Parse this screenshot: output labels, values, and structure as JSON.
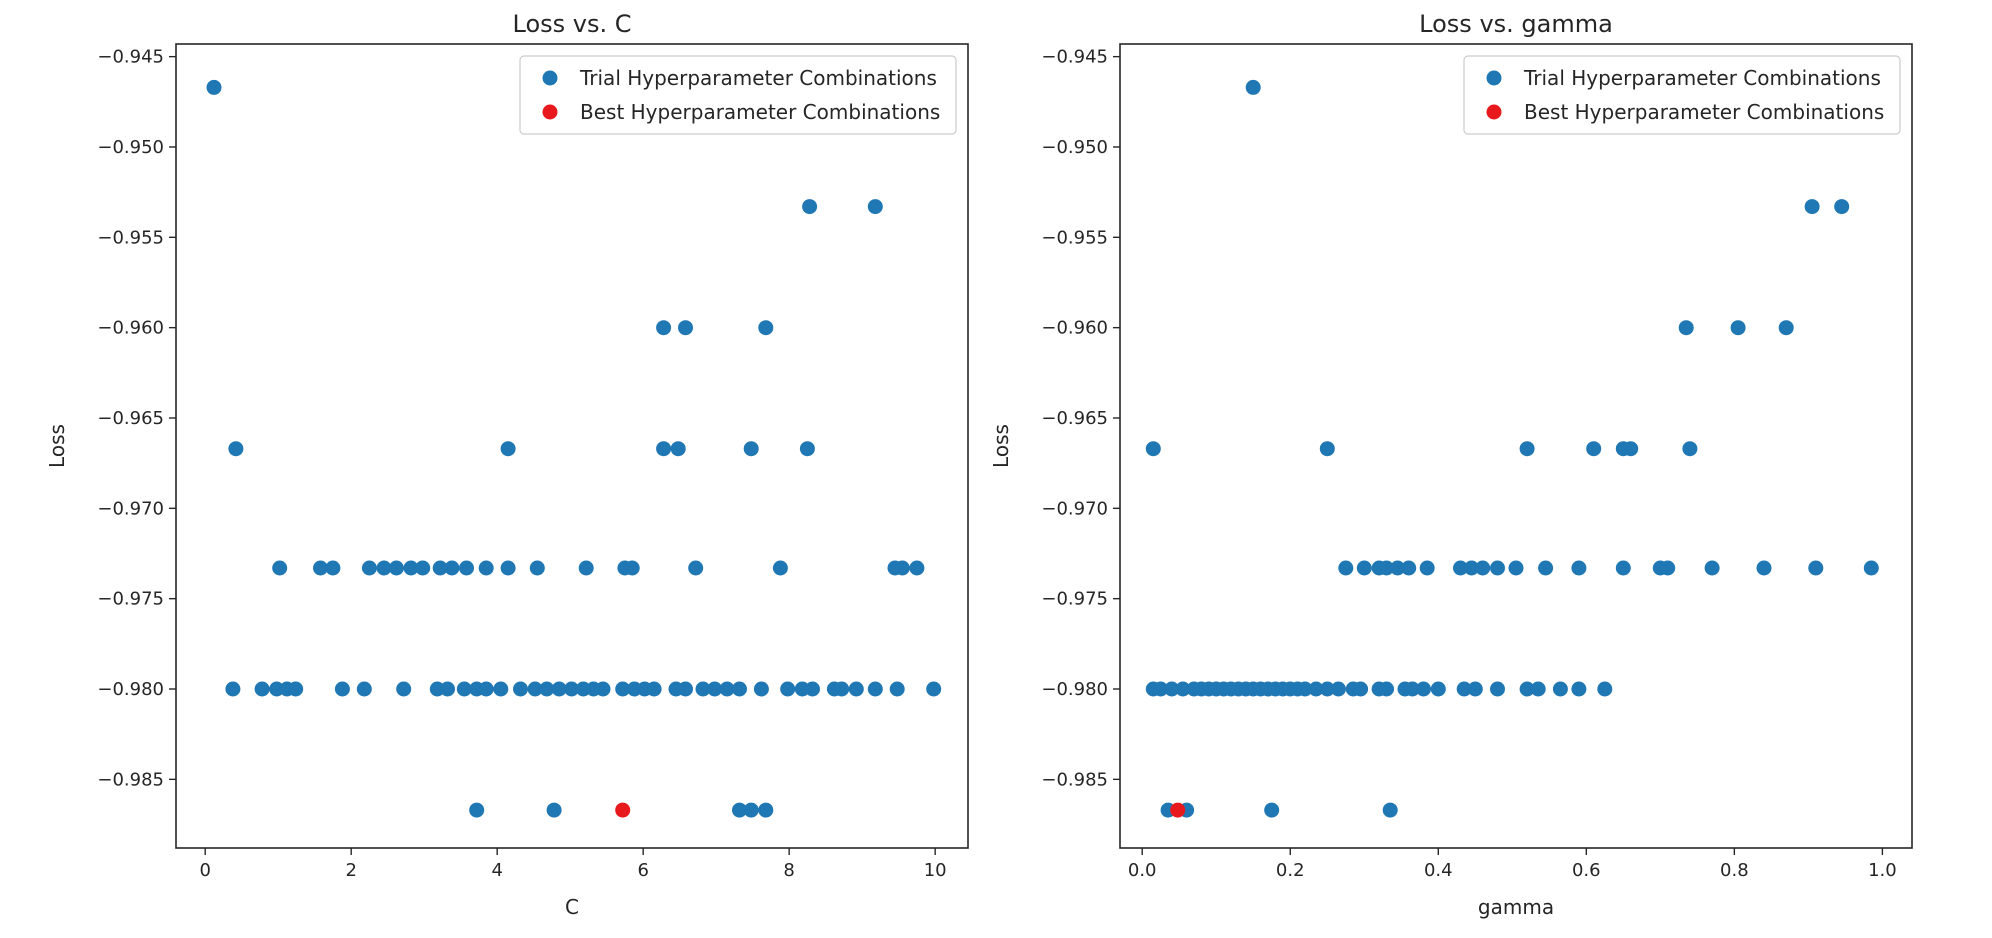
{
  "colors": {
    "trial": "#1f77b4",
    "best": "#e8191c",
    "axis": "#262626",
    "legend_border": "#cccccc"
  },
  "chart_data": [
    {
      "type": "scatter",
      "title": "Loss vs. C",
      "xlabel": "C",
      "ylabel": "Loss",
      "xlim": [
        -0.4,
        10.45
      ],
      "ylim": [
        -0.9888,
        -0.9443
      ],
      "xticks": [
        0,
        2,
        4,
        6,
        8,
        10
      ],
      "xtick_labels": [
        "0",
        "2",
        "4",
        "6",
        "8",
        "10"
      ],
      "yticks": [
        -0.945,
        -0.95,
        -0.955,
        -0.96,
        -0.965,
        -0.97,
        -0.975,
        -0.98,
        -0.985
      ],
      "ytick_labels": [
        "−0.945",
        "−0.950",
        "−0.955",
        "−0.960",
        "−0.965",
        "−0.970",
        "−0.975",
        "−0.980",
        "−0.985"
      ],
      "grid": false,
      "legend_position": "top-right",
      "series": [
        {
          "name": "Trial Hyperparameter Combinations",
          "color_key": "trial",
          "points": [
            [
              0.12,
              -0.9467
            ],
            [
              0.42,
              -0.9667
            ],
            [
              0.38,
              -0.98
            ],
            [
              0.78,
              -0.98
            ],
            [
              0.98,
              -0.98
            ],
            [
              1.12,
              -0.98
            ],
            [
              1.24,
              -0.98
            ],
            [
              1.88,
              -0.98
            ],
            [
              2.18,
              -0.98
            ],
            [
              2.72,
              -0.98
            ],
            [
              3.18,
              -0.98
            ],
            [
              3.32,
              -0.98
            ],
            [
              3.55,
              -0.98
            ],
            [
              3.72,
              -0.98
            ],
            [
              3.85,
              -0.98
            ],
            [
              4.05,
              -0.98
            ],
            [
              4.32,
              -0.98
            ],
            [
              4.52,
              -0.98
            ],
            [
              4.68,
              -0.98
            ],
            [
              4.85,
              -0.98
            ],
            [
              5.02,
              -0.98
            ],
            [
              5.18,
              -0.98
            ],
            [
              5.32,
              -0.98
            ],
            [
              5.45,
              -0.98
            ],
            [
              5.72,
              -0.98
            ],
            [
              5.88,
              -0.98
            ],
            [
              6.02,
              -0.98
            ],
            [
              6.15,
              -0.98
            ],
            [
              6.45,
              -0.98
            ],
            [
              6.58,
              -0.98
            ],
            [
              6.82,
              -0.98
            ],
            [
              6.98,
              -0.98
            ],
            [
              7.15,
              -0.98
            ],
            [
              7.32,
              -0.98
            ],
            [
              7.62,
              -0.98
            ],
            [
              7.98,
              -0.98
            ],
            [
              8.18,
              -0.98
            ],
            [
              8.32,
              -0.98
            ],
            [
              8.62,
              -0.98
            ],
            [
              8.72,
              -0.98
            ],
            [
              8.92,
              -0.98
            ],
            [
              9.18,
              -0.98
            ],
            [
              9.48,
              -0.98
            ],
            [
              9.98,
              -0.98
            ],
            [
              1.02,
              -0.9733
            ],
            [
              1.58,
              -0.9733
            ],
            [
              1.75,
              -0.9733
            ],
            [
              2.25,
              -0.9733
            ],
            [
              2.45,
              -0.9733
            ],
            [
              2.62,
              -0.9733
            ],
            [
              2.82,
              -0.9733
            ],
            [
              2.98,
              -0.9733
            ],
            [
              3.22,
              -0.9733
            ],
            [
              3.38,
              -0.9733
            ],
            [
              3.58,
              -0.9733
            ],
            [
              3.85,
              -0.9733
            ],
            [
              4.15,
              -0.9733
            ],
            [
              4.55,
              -0.9733
            ],
            [
              5.22,
              -0.9733
            ],
            [
              5.75,
              -0.9733
            ],
            [
              5.85,
              -0.9733
            ],
            [
              6.72,
              -0.9733
            ],
            [
              7.88,
              -0.9733
            ],
            [
              9.45,
              -0.9733
            ],
            [
              9.55,
              -0.9733
            ],
            [
              9.75,
              -0.9733
            ],
            [
              4.15,
              -0.9667
            ],
            [
              6.28,
              -0.9667
            ],
            [
              6.48,
              -0.9667
            ],
            [
              7.48,
              -0.9667
            ],
            [
              8.25,
              -0.9667
            ],
            [
              6.28,
              -0.96
            ],
            [
              6.58,
              -0.96
            ],
            [
              7.68,
              -0.96
            ],
            [
              8.28,
              -0.9533
            ],
            [
              9.18,
              -0.9533
            ],
            [
              3.72,
              -0.9867
            ],
            [
              4.78,
              -0.9867
            ],
            [
              7.32,
              -0.9867
            ],
            [
              7.48,
              -0.9867
            ],
            [
              7.68,
              -0.9867
            ]
          ]
        },
        {
          "name": "Best Hyperparameter Combinations",
          "color_key": "best",
          "points": [
            [
              5.72,
              -0.9867
            ]
          ]
        }
      ]
    },
    {
      "type": "scatter",
      "title": "Loss vs. gamma",
      "xlabel": "gamma",
      "ylabel": "Loss",
      "xlim": [
        -0.03,
        1.04
      ],
      "ylim": [
        -0.9888,
        -0.9443
      ],
      "xticks": [
        0,
        0.2,
        0.4,
        0.6,
        0.8,
        1.0
      ],
      "xtick_labels": [
        "0.0",
        "0.2",
        "0.4",
        "0.6",
        "0.8",
        "1.0"
      ],
      "yticks": [
        -0.945,
        -0.95,
        -0.955,
        -0.96,
        -0.965,
        -0.97,
        -0.975,
        -0.98,
        -0.985
      ],
      "ytick_labels": [
        "−0.945",
        "−0.950",
        "−0.955",
        "−0.960",
        "−0.965",
        "−0.970",
        "−0.975",
        "−0.980",
        "−0.985"
      ],
      "grid": false,
      "legend_position": "top-right",
      "series": [
        {
          "name": "Trial Hyperparameter Combinations",
          "color_key": "trial",
          "points": [
            [
              0.15,
              -0.9467
            ],
            [
              0.015,
              -0.9667
            ],
            [
              0.25,
              -0.9667
            ],
            [
              0.52,
              -0.9667
            ],
            [
              0.61,
              -0.9667
            ],
            [
              0.65,
              -0.9667
            ],
            [
              0.66,
              -0.9667
            ],
            [
              0.74,
              -0.9667
            ],
            [
              0.735,
              -0.96
            ],
            [
              0.805,
              -0.96
            ],
            [
              0.87,
              -0.96
            ],
            [
              0.905,
              -0.9533
            ],
            [
              0.945,
              -0.9533
            ],
            [
              0.275,
              -0.9733
            ],
            [
              0.3,
              -0.9733
            ],
            [
              0.32,
              -0.9733
            ],
            [
              0.33,
              -0.9733
            ],
            [
              0.345,
              -0.9733
            ],
            [
              0.36,
              -0.9733
            ],
            [
              0.385,
              -0.9733
            ],
            [
              0.43,
              -0.9733
            ],
            [
              0.445,
              -0.9733
            ],
            [
              0.46,
              -0.9733
            ],
            [
              0.48,
              -0.9733
            ],
            [
              0.505,
              -0.9733
            ],
            [
              0.545,
              -0.9733
            ],
            [
              0.59,
              -0.9733
            ],
            [
              0.65,
              -0.9733
            ],
            [
              0.7,
              -0.9733
            ],
            [
              0.71,
              -0.9733
            ],
            [
              0.77,
              -0.9733
            ],
            [
              0.84,
              -0.9733
            ],
            [
              0.91,
              -0.9733
            ],
            [
              0.985,
              -0.9733
            ],
            [
              0.015,
              -0.98
            ],
            [
              0.025,
              -0.98
            ],
            [
              0.04,
              -0.98
            ],
            [
              0.055,
              -0.98
            ],
            [
              0.07,
              -0.98
            ],
            [
              0.08,
              -0.98
            ],
            [
              0.09,
              -0.98
            ],
            [
              0.1,
              -0.98
            ],
            [
              0.11,
              -0.98
            ],
            [
              0.12,
              -0.98
            ],
            [
              0.13,
              -0.98
            ],
            [
              0.14,
              -0.98
            ],
            [
              0.15,
              -0.98
            ],
            [
              0.16,
              -0.98
            ],
            [
              0.17,
              -0.98
            ],
            [
              0.18,
              -0.98
            ],
            [
              0.19,
              -0.98
            ],
            [
              0.2,
              -0.98
            ],
            [
              0.21,
              -0.98
            ],
            [
              0.22,
              -0.98
            ],
            [
              0.235,
              -0.98
            ],
            [
              0.25,
              -0.98
            ],
            [
              0.265,
              -0.98
            ],
            [
              0.285,
              -0.98
            ],
            [
              0.295,
              -0.98
            ],
            [
              0.32,
              -0.98
            ],
            [
              0.33,
              -0.98
            ],
            [
              0.355,
              -0.98
            ],
            [
              0.365,
              -0.98
            ],
            [
              0.38,
              -0.98
            ],
            [
              0.4,
              -0.98
            ],
            [
              0.435,
              -0.98
            ],
            [
              0.45,
              -0.98
            ],
            [
              0.48,
              -0.98
            ],
            [
              0.52,
              -0.98
            ],
            [
              0.535,
              -0.98
            ],
            [
              0.565,
              -0.98
            ],
            [
              0.59,
              -0.98
            ],
            [
              0.625,
              -0.98
            ],
            [
              0.035,
              -0.9867
            ],
            [
              0.06,
              -0.9867
            ],
            [
              0.175,
              -0.9867
            ],
            [
              0.335,
              -0.9867
            ]
          ]
        },
        {
          "name": "Best Hyperparameter Combinations",
          "color_key": "best",
          "points": [
            [
              0.048,
              -0.9867
            ]
          ]
        }
      ]
    }
  ]
}
